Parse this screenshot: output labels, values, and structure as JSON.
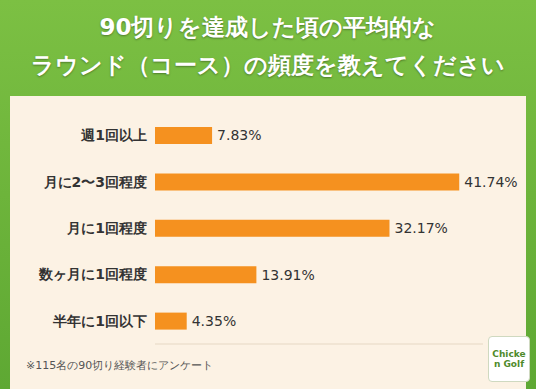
{
  "chart_data": {
    "type": "bar",
    "title": [
      "90切りを達成した頃の平均的な",
      "ラウンド（コース）の頻度を教えてください"
    ],
    "categories": [
      "週1回以上",
      "月に2〜3回程度",
      "月に1回程度",
      "数ヶ月に1回程度",
      "半年に1回以下"
    ],
    "values": [
      7.83,
      41.74,
      32.17,
      13.91,
      4.35
    ],
    "value_labels": [
      "7.83%",
      "41.74%",
      "32.17%",
      "13.91%",
      "4.35%"
    ],
    "color": "#f5911f",
    "orientation": "horizontal",
    "data_labels": true,
    "tick_labels": "y",
    "grid": false,
    "xlim": [
      0,
      45
    ],
    "annotations": [
      "※115名の90切り経験者にアンケート",
      "Chicken Golf"
    ]
  }
}
